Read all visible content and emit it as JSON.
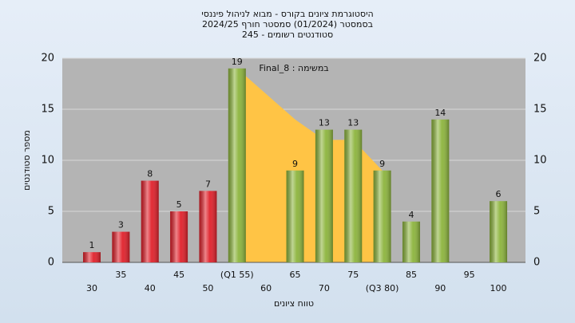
{
  "chart_data": {
    "type": "bar",
    "title": [
      "היסטוגרמת ציונים בקורס - מבוא לניהול פיננסי",
      "בסמסטר (01/2024) סמסטר חורף 2024/25",
      "סטודנטים רשומים - 245"
    ],
    "annotation": "במשימה : Final_8",
    "x_label": "טווח ציונים",
    "y_label": "מספר סטודנטים",
    "categories": [
      "30",
      "35",
      "40",
      "45",
      "50",
      "(Q1 55)",
      "60",
      "65",
      "70",
      "75",
      "(Q3 80)",
      "85",
      "90",
      "95",
      "100"
    ],
    "values": [
      1,
      3,
      8,
      5,
      7,
      19,
      null,
      9,
      13,
      13,
      9,
      4,
      14,
      null,
      6
    ],
    "colors": [
      "#e0202a",
      "#e0202a",
      "#e0202a",
      "#e0202a",
      "#e0202a",
      "#8cb43c",
      "#8cb43c",
      "#8cb43c",
      "#8cb43c",
      "#8cb43c",
      "#8cb43c",
      "#8cb43c",
      "#8cb43c",
      "#8cb43c",
      "#8cb43c"
    ],
    "area": {
      "color": "#ffc445",
      "values": [
        null,
        null,
        null,
        null,
        null,
        19,
        16.5,
        14,
        12,
        12,
        9,
        null,
        null,
        null,
        null
      ]
    },
    "ylim": [
      0,
      20
    ],
    "yticks": [
      0,
      5,
      10,
      15,
      20
    ],
    "grid": true
  }
}
